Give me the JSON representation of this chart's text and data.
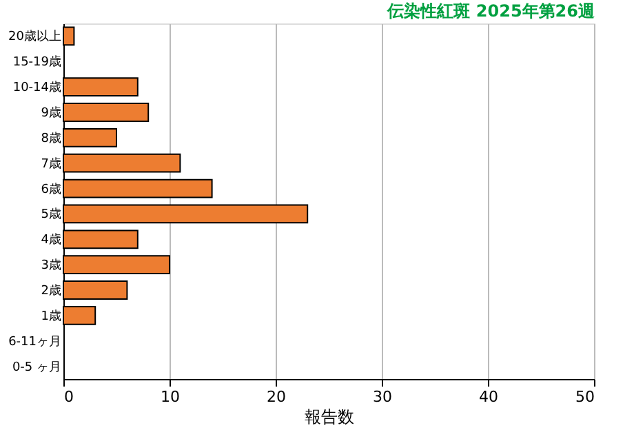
{
  "chart_data": {
    "type": "bar",
    "orientation": "horizontal",
    "title": "伝染性紅斑 2025年第26週",
    "xlabel": "報告数",
    "categories": [
      "20歳以上",
      "15-19歳",
      "10-14歳",
      "9歳",
      "8歳",
      "7歳",
      "6歳",
      "5歳",
      "4歳",
      "3歳",
      "2歳",
      "1歳",
      "6-11ヶ月",
      "0-5 ヶ月"
    ],
    "values": [
      1,
      0,
      7,
      8,
      5,
      11,
      14,
      23,
      7,
      10,
      6,
      3,
      0,
      0
    ],
    "color": "#ed7d31",
    "xlim": [
      0,
      50
    ],
    "xticks": [
      0,
      10,
      20,
      30,
      40,
      50
    ],
    "grid": "x"
  }
}
